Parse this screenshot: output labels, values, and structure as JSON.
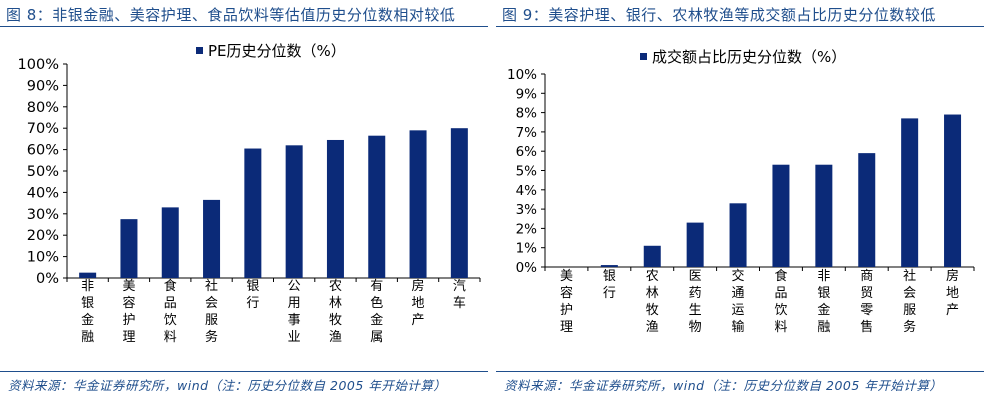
{
  "figure8": {
    "title": "图 8：非银金融、美容护理、食品饮料等估值历史分位数相对较低",
    "source": "资料来源：华金证券研究所，wind（注：历史分位数自 2005 年开始计算）"
  },
  "figure9": {
    "title": "图 9：美容护理、银行、农林牧渔等成交额占比历史分位数较低",
    "source": "资料来源：华金证券研究所，wind（注：历史分位数自 2005 年开始计算）"
  },
  "colors": {
    "bar": "#0b2a78",
    "title": "#1f4e8c",
    "axis": "#000000"
  },
  "chart_data": [
    {
      "type": "bar",
      "title": "",
      "legend": "PE历史分位数（%）",
      "legend_position": "top-center",
      "categories": [
        "非银金融",
        "美容护理",
        "食品饮料",
        "社会服务",
        "银行",
        "公用事业",
        "农林牧渔",
        "有色金属",
        "房地产",
        "汽车"
      ],
      "values": [
        2.5,
        27.5,
        33,
        36.5,
        60.5,
        62,
        64.5,
        66.5,
        69,
        70
      ],
      "ylim": [
        0,
        100
      ],
      "yticks": [
        "0%",
        "10%",
        "20%",
        "30%",
        "40%",
        "50%",
        "60%",
        "70%",
        "80%",
        "90%",
        "100%"
      ],
      "xlabel": "",
      "ylabel": "",
      "grid": false
    },
    {
      "type": "bar",
      "title": "",
      "legend": "成交额占比历史分位数（%）",
      "legend_position": "top-center",
      "categories": [
        "美容护理",
        "银行",
        "农林牧渔",
        "医药生物",
        "交通运输",
        "食品饮料",
        "非银金融",
        "商贸零售",
        "社会服务",
        "房地产"
      ],
      "values": [
        0,
        0.1,
        1.1,
        2.3,
        3.3,
        5.3,
        5.3,
        5.9,
        7.7,
        7.9
      ],
      "ylim": [
        0,
        10
      ],
      "yticks": [
        "0%",
        "1%",
        "2%",
        "3%",
        "4%",
        "5%",
        "6%",
        "7%",
        "8%",
        "9%",
        "10%"
      ],
      "xlabel": "",
      "ylabel": "",
      "grid": false
    }
  ]
}
